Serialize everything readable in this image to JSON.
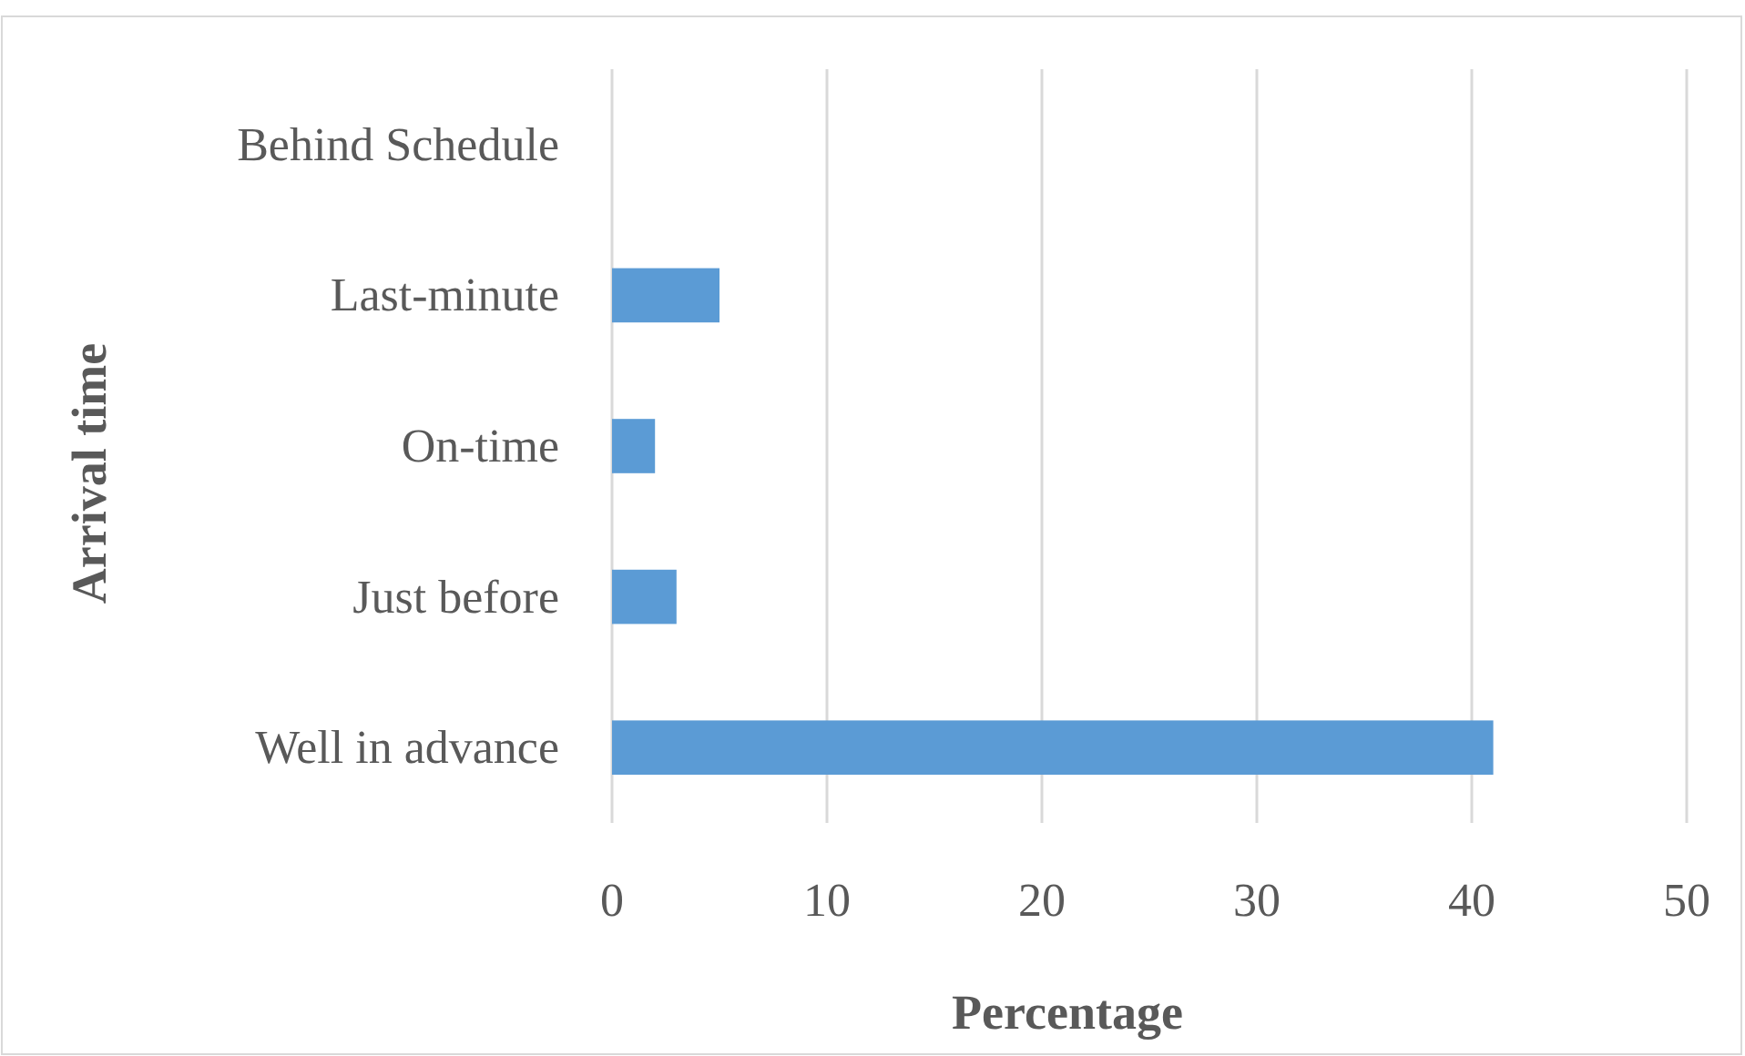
{
  "chart_data": {
    "type": "bar",
    "orientation": "horizontal",
    "categories": [
      "Behind Schedule",
      "Last-minute",
      "On-time",
      "Just before",
      "Well in advance"
    ],
    "values": [
      0,
      5,
      2,
      3,
      41
    ],
    "color": "#5b9bd5",
    "xlim": [
      0,
      50
    ],
    "xticks": [
      0,
      10,
      20,
      30,
      40,
      50
    ],
    "grid": "x",
    "xlabel": "Percentage",
    "ylabel": "Arrival time"
  }
}
